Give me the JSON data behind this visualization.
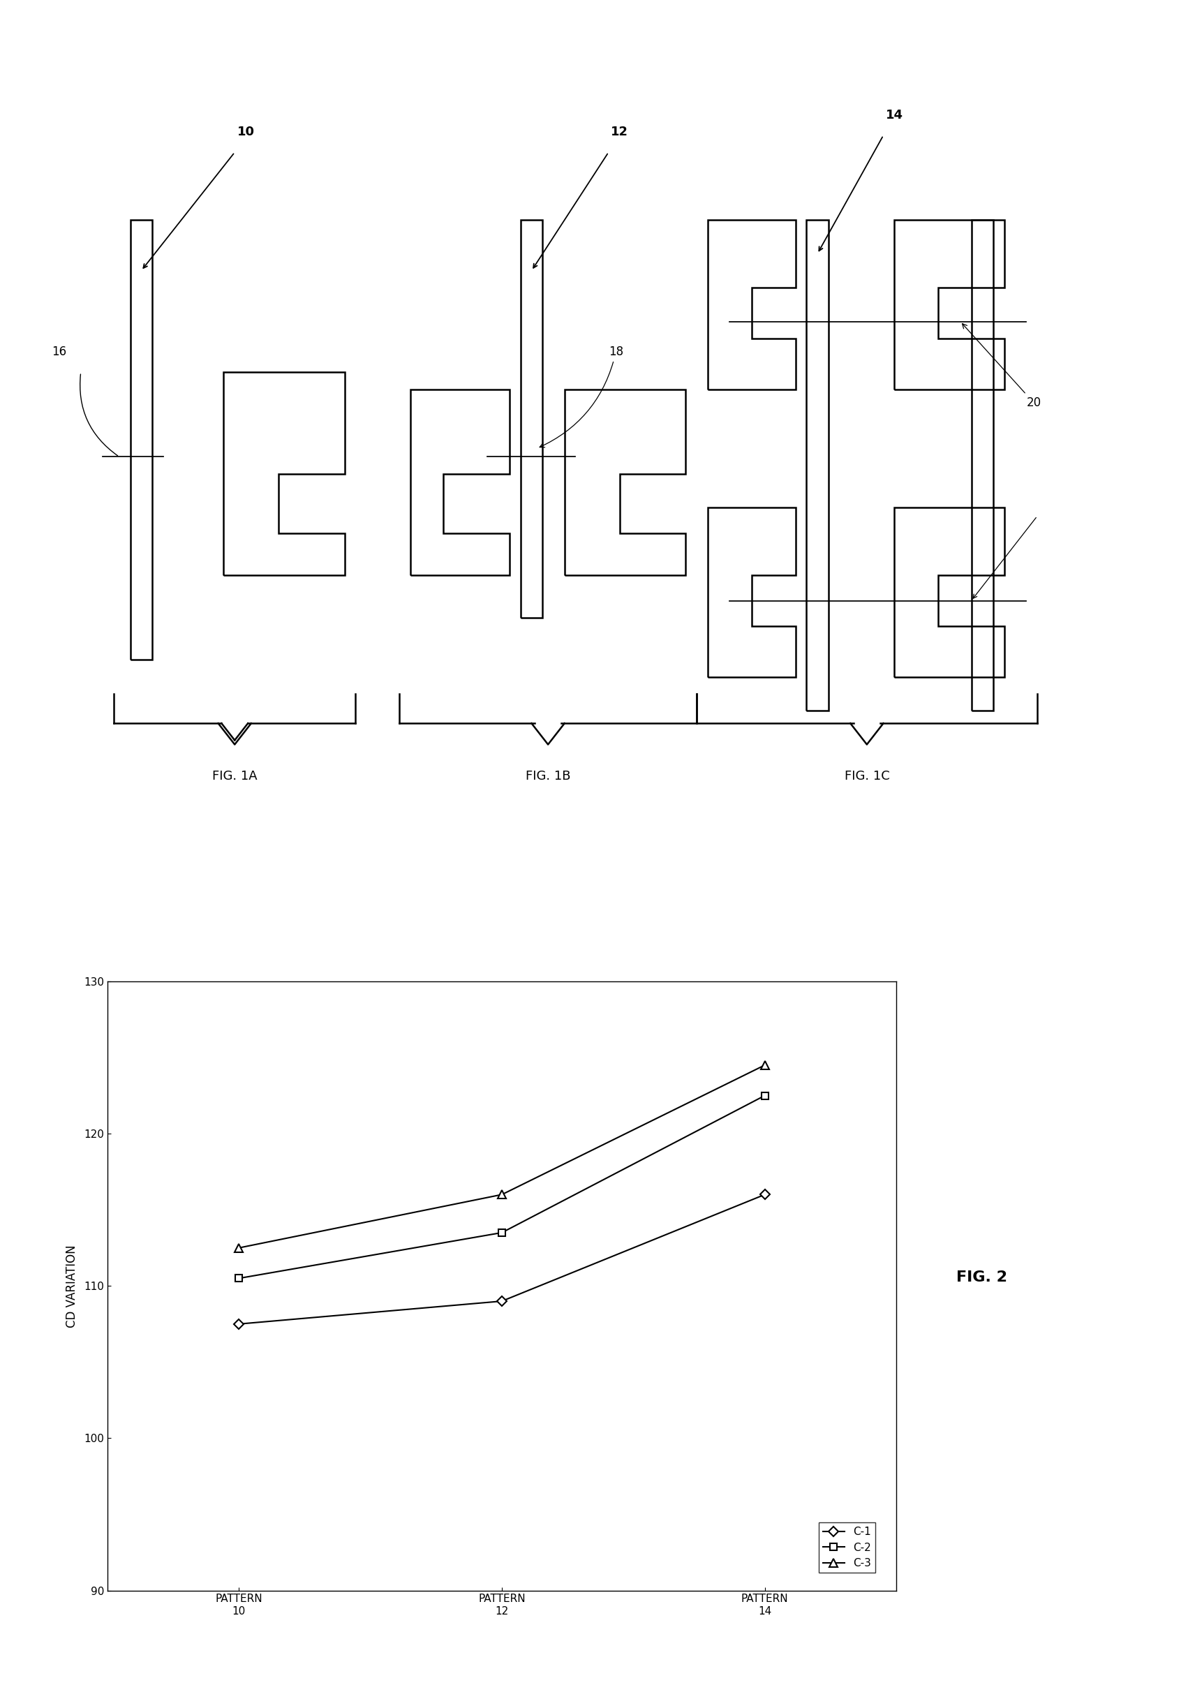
{
  "background_color": "#ffffff",
  "fig_width": 17.12,
  "fig_height": 24.24,
  "graph_data": {
    "x": [
      0,
      1,
      2
    ],
    "x_labels": [
      "PATTERN\n10",
      "PATTERN\n12",
      "PATTERN\n14"
    ],
    "series": [
      {
        "label": "C-1",
        "values": [
          107.5,
          109.0,
          116.0
        ],
        "marker": "D",
        "color": "#000000"
      },
      {
        "label": "C-2",
        "values": [
          110.5,
          113.5,
          122.5
        ],
        "marker": "s",
        "color": "#000000"
      },
      {
        "label": "C-3",
        "values": [
          112.5,
          116.0,
          124.5
        ],
        "marker": "^",
        "color": "#000000"
      }
    ],
    "ylabel": "CD VARIATION",
    "ylim": [
      90,
      130
    ],
    "yticks": [
      90,
      100,
      110,
      120,
      130
    ],
    "fig2_label": "FIG. 2"
  },
  "annotations": {
    "label_10": "10",
    "label_12": "12",
    "label_14": "14",
    "label_16": "16",
    "label_18": "18",
    "label_20": "20",
    "fig1a": "FIG. 1A",
    "fig1b": "FIG. 1B",
    "fig1c": "FIG. 1C"
  }
}
